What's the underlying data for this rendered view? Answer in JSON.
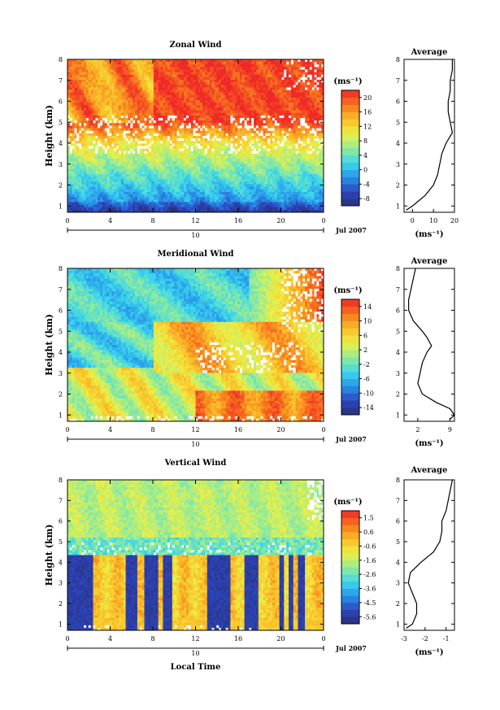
{
  "figure": {
    "xlabel": "Local Time",
    "date_label": "Jul 2007",
    "day_label": "10",
    "cbar_unit": "(ms⁻¹)",
    "avg_unit": "(ms⁻¹)"
  },
  "chart_data": [
    {
      "type": "heatmap",
      "title": "Zonal Wind",
      "ylabel": "Height (km)",
      "x_ticks": [
        "0",
        "4",
        "8",
        "12",
        "16",
        "20",
        "0"
      ],
      "y_ticks": [
        "1",
        "2",
        "3",
        "4",
        "5",
        "6",
        "7",
        "8"
      ],
      "xlim": [
        0,
        24
      ],
      "ylim": [
        0.7,
        8.0
      ],
      "colorbar": {
        "ticks": [
          "-8",
          "-4",
          "0",
          "4",
          "8",
          "12",
          "16",
          "20"
        ],
        "range": [
          -10,
          22
        ]
      },
      "profile": {
        "title": "Average",
        "xlim": [
          -4,
          20
        ],
        "x_ticks": [
          "0",
          "10",
          "20"
        ],
        "heights": [
          0.8,
          1.0,
          1.5,
          2.0,
          2.5,
          3.0,
          3.5,
          4.0,
          4.5,
          5.0,
          5.5,
          6.0,
          6.5,
          7.0,
          7.5,
          8.0
        ],
        "values": [
          -3,
          0,
          6,
          10,
          12,
          13,
          14,
          16,
          19,
          18,
          17,
          17,
          18,
          18,
          19,
          19
        ]
      }
    },
    {
      "type": "heatmap",
      "title": "Meridional Wind",
      "ylabel": "Height (km)",
      "x_ticks": [
        "0",
        "4",
        "8",
        "12",
        "16",
        "20",
        "0"
      ],
      "y_ticks": [
        "1",
        "2",
        "3",
        "4",
        "5",
        "6",
        "7",
        "8"
      ],
      "xlim": [
        0,
        24
      ],
      "ylim": [
        0.7,
        8.0
      ],
      "colorbar": {
        "ticks": [
          "-14",
          "-10",
          "-6",
          "-2",
          "2",
          "6",
          "10",
          "14"
        ],
        "range": [
          -16,
          16
        ]
      },
      "profile": {
        "title": "Average",
        "xlim": [
          -1,
          10
        ],
        "x_ticks": [
          "2",
          "9"
        ],
        "heights": [
          0.8,
          1.0,
          1.3,
          1.6,
          2.0,
          2.5,
          3.0,
          3.5,
          4.0,
          4.3,
          4.7,
          5.0,
          5.5,
          6.0,
          6.5,
          7.0,
          7.5,
          8.0
        ],
        "values": [
          9,
          10,
          9,
          6,
          3,
          2,
          2.5,
          3,
          4,
          5,
          4,
          3,
          1,
          0,
          0,
          0.5,
          1,
          1.5
        ]
      }
    },
    {
      "type": "heatmap",
      "title": "Vertical Wind",
      "ylabel": "Height (km)",
      "x_ticks": [
        "0",
        "4",
        "8",
        "12",
        "16",
        "20",
        "0"
      ],
      "y_ticks": [
        "1",
        "2",
        "3",
        "4",
        "5",
        "6",
        "7",
        "8"
      ],
      "xlim": [
        0,
        24
      ],
      "ylim": [
        0.7,
        8.0
      ],
      "colorbar": {
        "ticks": [
          "-5.6",
          "-4.5",
          "-3.6",
          "-2.6",
          "-1.6",
          "-0.6",
          "0.6",
          "1.5"
        ],
        "range": [
          -6.2,
          2.0
        ]
      },
      "profile": {
        "title": "Average",
        "xlim": [
          -3,
          -0.6
        ],
        "x_ticks": [
          "-3",
          "-2",
          "-1"
        ],
        "heights": [
          0.8,
          1.0,
          1.5,
          2.0,
          2.5,
          3.0,
          3.5,
          4.0,
          4.5,
          5.0,
          5.5,
          6.0,
          6.5,
          7.0,
          7.5,
          8.0
        ],
        "values": [
          -2.9,
          -2.6,
          -2.4,
          -2.4,
          -2.6,
          -2.8,
          -2.7,
          -2.2,
          -1.6,
          -1.3,
          -1.2,
          -1.2,
          -1.0,
          -0.9,
          -0.8,
          -0.7
        ]
      }
    }
  ]
}
